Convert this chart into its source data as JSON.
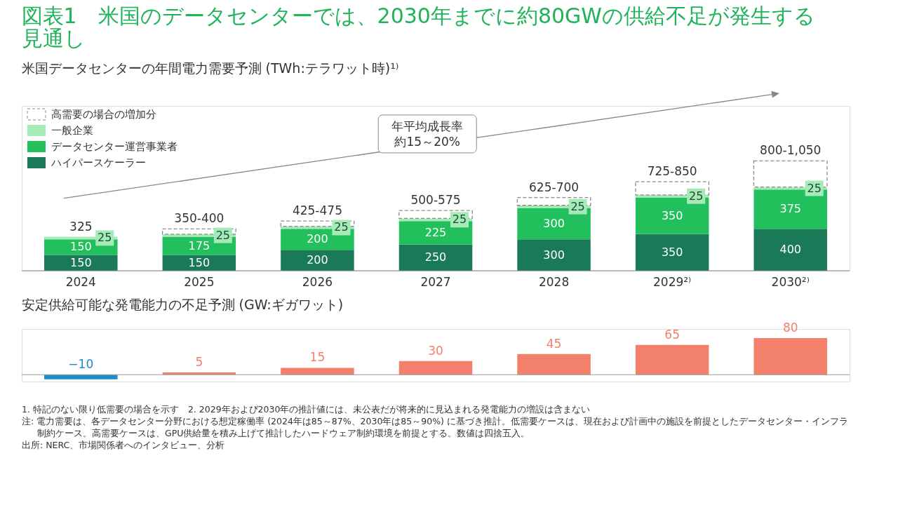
{
  "chart_data": [
    {
      "type": "bar",
      "title": "図表1　米国のデータセンターでは、2030年までに約80GWの供給不足が発生する見通し",
      "subtitle": "米国データセンターの年間電力需要予測 (TWh:テラワット時)¹⁾",
      "categories": [
        "2024",
        "2025",
        "2026",
        "2027",
        "2028",
        "2029²⁾",
        "2030²⁾"
      ],
      "stacked": true,
      "legend": "top left",
      "tick_labels": "x",
      "grid": false,
      "series": [
        {
          "name": "ハイパースケーラー",
          "color": "#1a7a57",
          "values": [
            150,
            150,
            200,
            250,
            300,
            350,
            400
          ],
          "value_labels": [
            "150",
            "150",
            "200",
            "250",
            "300",
            "350",
            "400"
          ]
        },
        {
          "name": "データセンター運営事業者",
          "color": "#22c05c",
          "values": [
            150,
            175,
            200,
            225,
            300,
            350,
            375
          ],
          "value_labels": [
            "150",
            "175",
            "200",
            "225",
            "300",
            "350",
            "375"
          ]
        },
        {
          "name": "一般企業",
          "color": "#a6eab8",
          "values": [
            25,
            25,
            25,
            25,
            25,
            25,
            25
          ],
          "value_labels": [
            "25",
            "25",
            "25",
            "25",
            "25",
            "25",
            "25"
          ]
        },
        {
          "name": "高需要の場合の増加分",
          "color": "#ffffff",
          "line_style": "dashed",
          "values": [
            null,
            50,
            50,
            75,
            75,
            125,
            250
          ],
          "value_labels": [
            null,
            null,
            null,
            null,
            null,
            null,
            null
          ]
        }
      ],
      "totals": [
        "325",
        "350-400",
        "425-475",
        "500-575",
        "625-700",
        "725-850",
        "800-1,050"
      ],
      "annotations": [
        "年平均成長率約15～20%"
      ]
    },
    {
      "type": "bar",
      "title": "安定供給可能な発電能力の不足予測 (GW:ギガワット)",
      "categories": [
        null,
        null,
        null,
        null,
        null,
        null,
        null
      ],
      "values": [
        -10,
        5,
        15,
        30,
        45,
        65,
        80
      ],
      "colors": [
        "#1b8ccc",
        "#f2806a",
        "#f2806a",
        "#f2806a",
        "#f2806a",
        "#f2806a",
        "#f2806a"
      ],
      "data_labels": true,
      "tick_labels": false,
      "annotations": [
        "1. 特記のない限り低需要の場合を示す　2. 2029年および2030年の推計値には、未公表だが将来的に見込まれる発電能力の増設は含まない",
        "注: 電力需要は、各データセンター分野における想定稼働率 (2024年は85～87%、2030年は85～90%) に基づき推計。低需要ケースは、現在および計画中の施設を前提としたデータセンター・インフラ制約ケース。高需要ケースは、GPU供給量を積み上げて推計したハードウェア制約環境を前提とする。数値は四捨五入。",
        "出所: NERC、市場関係者へのインタビュー、分析"
      ]
    }
  ]
}
